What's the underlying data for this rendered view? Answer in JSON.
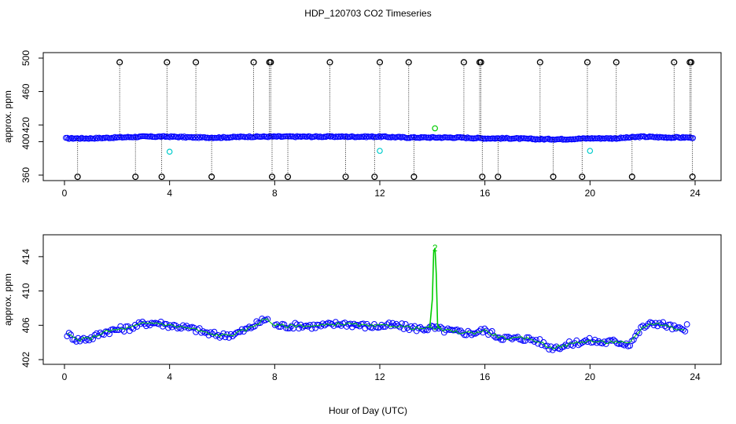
{
  "chart_data": {
    "title": "HDP_120703  CO2 Timeseries",
    "xlabel": "Hour of Day (UTC)",
    "panels": [
      {
        "type": "scatter",
        "ylabel": "approx. ppm",
        "xlim": [
          0,
          24
        ],
        "ylim": [
          360,
          500
        ],
        "xticks": [
          0,
          4,
          8,
          12,
          16,
          20,
          24
        ],
        "yticks": [
          360,
          400,
          420,
          460,
          500
        ],
        "series": [
          {
            "color": "#0000ff",
            "marker": "o",
            "baseline": [
              [
                0,
                404
              ],
              [
                1,
                404
              ],
              [
                2,
                405
              ],
              [
                3,
                406
              ],
              [
                4,
                406
              ],
              [
                5,
                405
              ],
              [
                6,
                405
              ],
              [
                7,
                406
              ],
              [
                8,
                406
              ],
              [
                9,
                406
              ],
              [
                10,
                406
              ],
              [
                11,
                406
              ],
              [
                12,
                406
              ],
              [
                13,
                405
              ],
              [
                14,
                405
              ],
              [
                15,
                405
              ],
              [
                16,
                404
              ],
              [
                17,
                404
              ],
              [
                18,
                403
              ],
              [
                19,
                403
              ],
              [
                20,
                404
              ],
              [
                21,
                404
              ],
              [
                22,
                406
              ],
              [
                23,
                405
              ],
              [
                23.9,
                405
              ]
            ]
          },
          {
            "color": "#000000",
            "marker": "o",
            "high_outliers": [
              2.1,
              3.9,
              5.0,
              7.2,
              7.8,
              7.85,
              10.1,
              12.0,
              13.1,
              15.2,
              15.8,
              15.85,
              18.1,
              19.9,
              21.0,
              23.2,
              23.8,
              23.85
            ],
            "high_value": 495,
            "low_outliers": [
              0.5,
              2.7,
              3.7,
              5.6,
              7.9,
              8.5,
              10.7,
              11.8,
              13.3,
              15.9,
              16.5,
              18.6,
              19.7,
              21.6,
              23.9
            ],
            "low_value": 358
          },
          {
            "color": "#00cccc",
            "marker": "o",
            "points": [
              [
                4.0,
                388
              ],
              [
                12.0,
                389
              ],
              [
                20.0,
                389
              ]
            ]
          },
          {
            "color": "#00cc00",
            "marker": "o",
            "points": [
              [
                14.1,
                416
              ]
            ]
          }
        ]
      },
      {
        "type": "line",
        "ylabel": "approx. ppm",
        "xlim": [
          0,
          24
        ],
        "ylim": [
          402,
          416
        ],
        "xticks": [
          0,
          4,
          8,
          12,
          16,
          20,
          24
        ],
        "yticks": [
          402,
          406,
          410,
          414
        ],
        "series": [
          {
            "color": "#0000ff",
            "marker": "o",
            "baseline": [
              [
                0.1,
                405
              ],
              [
                0.5,
                404.3
              ],
              [
                1,
                404.5
              ],
              [
                1.5,
                405.2
              ],
              [
                2,
                405.5
              ],
              [
                2.5,
                405.7
              ],
              [
                3,
                406.2
              ],
              [
                3.5,
                406.3
              ],
              [
                4,
                406
              ],
              [
                4.5,
                405.8
              ],
              [
                5,
                405.5
              ],
              [
                5.5,
                405
              ],
              [
                6,
                404.8
              ],
              [
                6.5,
                405
              ],
              [
                7,
                405.6
              ],
              [
                7.5,
                406.5
              ],
              [
                7.7,
                406.8
              ],
              [
                8,
                406
              ],
              [
                8.5,
                405.9
              ],
              [
                9,
                406
              ],
              [
                9.5,
                405.9
              ],
              [
                10,
                406
              ],
              [
                10.5,
                406.2
              ],
              [
                11,
                406.1
              ],
              [
                11.5,
                405.9
              ],
              [
                12,
                405.9
              ],
              [
                12.5,
                406
              ],
              [
                13,
                405.8
              ],
              [
                13.5,
                405.6
              ],
              [
                14,
                405.7
              ],
              [
                14.5,
                405.4
              ],
              [
                15,
                405.2
              ],
              [
                15.5,
                405.1
              ],
              [
                16,
                405.4
              ],
              [
                16.5,
                404.7
              ],
              [
                17,
                404.4
              ],
              [
                17.5,
                404.5
              ],
              [
                18,
                404.2
              ],
              [
                18.5,
                403.4
              ],
              [
                19,
                403.6
              ],
              [
                19.5,
                404
              ],
              [
                20,
                404.2
              ],
              [
                20.5,
                404
              ],
              [
                21,
                404.1
              ],
              [
                21.5,
                403.8
              ],
              [
                22,
                405.8
              ],
              [
                22.5,
                406.3
              ],
              [
                23,
                405.9
              ],
              [
                23.5,
                405.4
              ],
              [
                23.7,
                405.8
              ]
            ]
          },
          {
            "color": "#00cc00",
            "marker": "2",
            "spike": [
              [
                13.9,
                405.7
              ],
              [
                14.0,
                409
              ],
              [
                14.05,
                414.5
              ],
              [
                14.1,
                415
              ],
              [
                14.15,
                412
              ],
              [
                14.2,
                406
              ],
              [
                14.3,
                405.6
              ]
            ]
          }
        ]
      }
    ]
  }
}
